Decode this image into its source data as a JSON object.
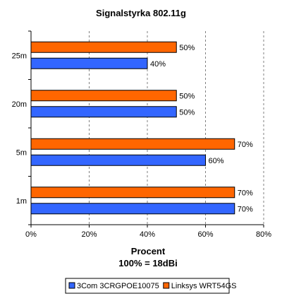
{
  "chart_data": {
    "type": "bar",
    "orientation": "horizontal",
    "title": "Signalstyrka 802.11g",
    "xlabel": "Procent",
    "xlabel_sub": "100% = 18dBi",
    "categories": [
      "25m",
      "20m",
      "5m",
      "1m"
    ],
    "series": [
      {
        "name": "3Com 3CRGPOE10075",
        "values": [
          40,
          50,
          60,
          70
        ],
        "labels": [
          "40%",
          "50%",
          "60%",
          "70%"
        ],
        "color": "#3366ff"
      },
      {
        "name": "Linksys WRT54GS",
        "values": [
          50,
          50,
          70,
          70
        ],
        "labels": [
          "50%",
          "50%",
          "70%",
          "70%"
        ],
        "color": "#ff6600"
      }
    ],
    "xlim": [
      0,
      80
    ],
    "xticks": [
      0,
      20,
      40,
      60,
      80
    ],
    "xtick_labels": [
      "0%",
      "20%",
      "40%",
      "60%",
      "80%"
    ],
    "grid": true,
    "legend": "bottom"
  }
}
